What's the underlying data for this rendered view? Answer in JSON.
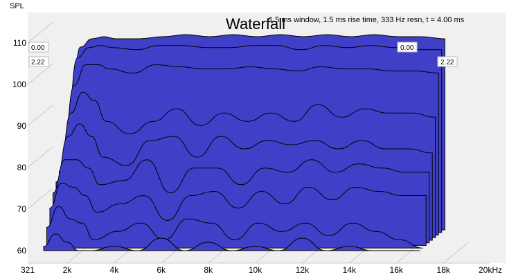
{
  "chart_data": {
    "type": "area",
    "title": "Waterfall",
    "subtitle": "1.5 ms window, 1.5 ms rise time,  333 Hz resn, t = 4.00 ms",
    "ylabel": "SPL",
    "xlabel_unit": "kHz",
    "ylim": [
      60,
      115
    ],
    "xlim_hz": [
      321,
      20000
    ],
    "x_ticks": [
      "321",
      "2k",
      "4k",
      "6k",
      "8k",
      "10k",
      "12k",
      "14k",
      "16k",
      "18k",
      "20kHz"
    ],
    "y_ticks": [
      "60",
      "70",
      "80",
      "90",
      "100",
      "110"
    ],
    "time_labels": {
      "back_left": "0.00",
      "back_right": "0.00",
      "front_left": "2.22",
      "front_right": "2.22"
    },
    "fill_color": "#3f3fc8",
    "x_hz": [
      1000,
      1500,
      2000,
      2500,
      3000,
      4000,
      5000,
      6000,
      7000,
      8000,
      9000,
      10000,
      11000,
      12000,
      13000,
      14000,
      15000,
      16000,
      17000
    ],
    "series": [
      {
        "time_ms": 0.0,
        "values": [
          82,
          104,
          106,
          106.5,
          106,
          106,
          106.5,
          107,
          106.5,
          107,
          106.5,
          107,
          106.5,
          107,
          106.5,
          107,
          106.5,
          106.5,
          106
        ]
      },
      {
        "time_ms": 0.28,
        "values": [
          80,
          102,
          104.5,
          105,
          104.5,
          104,
          105,
          105,
          104.5,
          104.5,
          105,
          105,
          104,
          105,
          104.5,
          105,
          104.5,
          104,
          104
        ]
      },
      {
        "time_ms": 0.56,
        "values": [
          78,
          96,
          101,
          101,
          100,
          99,
          101,
          100.5,
          100,
          100,
          100.5,
          100,
          99.5,
          100.5,
          100,
          100,
          99.5,
          99.5,
          99
        ]
      },
      {
        "time_ms": 0.83,
        "values": [
          76,
          90,
          95,
          93,
          88,
          85,
          88,
          91,
          87,
          90,
          88,
          90,
          88,
          92,
          89,
          91,
          90,
          90,
          89
        ]
      },
      {
        "time_ms": 1.11,
        "values": [
          74,
          85,
          88,
          85,
          80,
          78,
          84,
          85,
          80,
          85,
          82,
          84,
          83,
          84,
          82,
          84,
          82,
          82,
          81
        ]
      },
      {
        "time_ms": 1.39,
        "values": [
          72,
          80,
          80,
          78,
          74,
          75,
          80,
          72,
          78,
          78,
          74,
          78,
          77,
          80,
          77,
          79,
          78,
          77,
          77
        ]
      },
      {
        "time_ms": 1.67,
        "values": [
          69,
          75,
          74,
          72,
          68,
          70,
          72,
          66,
          72,
          73,
          69,
          73,
          70,
          74,
          71,
          74,
          73,
          72,
          72
        ]
      },
      {
        "time_ms": 1.94,
        "values": [
          65,
          70,
          67,
          66,
          62,
          64,
          66,
          62,
          67,
          66,
          62,
          66,
          64,
          66,
          63,
          66,
          64,
          62,
          60
        ]
      },
      {
        "time_ms": 2.22,
        "values": [
          61,
          64,
          62,
          60,
          60,
          61,
          60,
          63,
          60,
          62,
          60,
          61,
          60,
          63,
          60,
          61,
          60,
          60,
          60
        ]
      }
    ]
  }
}
